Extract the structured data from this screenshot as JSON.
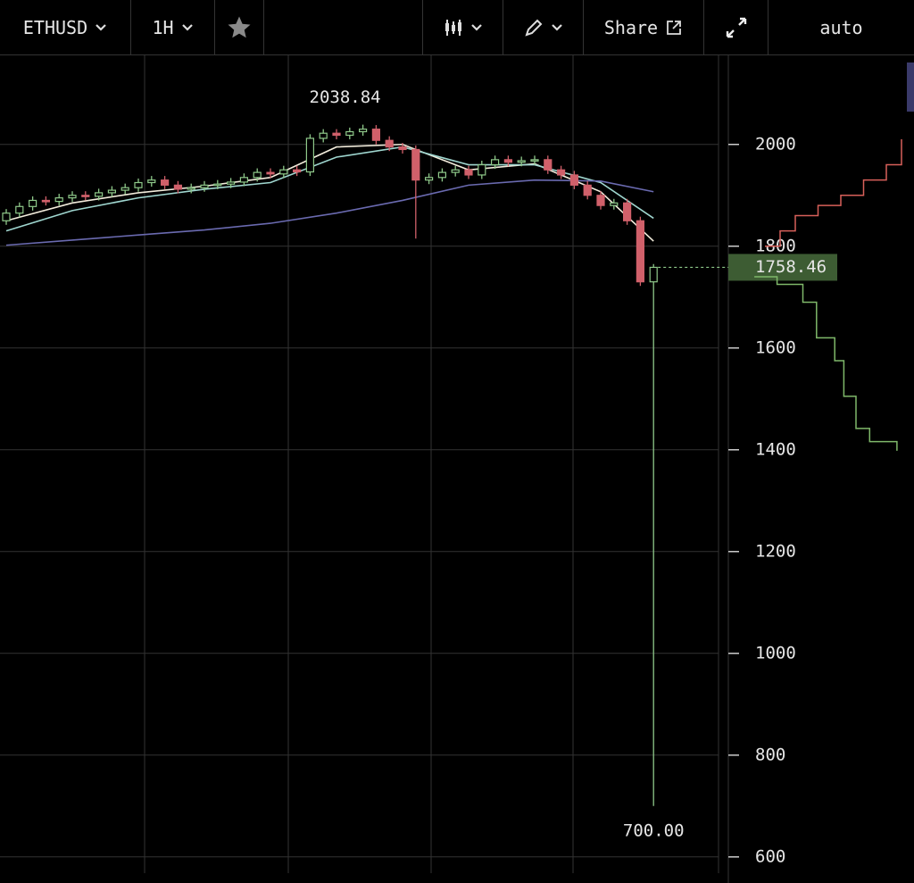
{
  "toolbar": {
    "symbol": "ETHUSD",
    "interval": "1H",
    "share": "Share",
    "scale_mode": "auto"
  },
  "chart_data": {
    "type": "candlestick",
    "open": [
      1850,
      1865,
      1878,
      1890,
      1888,
      1895,
      1900,
      1898,
      1905,
      1910,
      1915,
      1925,
      1930,
      1920,
      1912,
      1915,
      1920,
      1922,
      1926,
      1935,
      1945,
      1942,
      1950,
      1946,
      2012,
      2022,
      2018,
      2025,
      2030,
      2008,
      1995,
      1990,
      1930,
      1935,
      1945,
      1950,
      1940,
      1960,
      1970,
      1965,
      1968,
      1970,
      1950,
      1940,
      1920,
      1900,
      1880,
      1885,
      1850,
      1730
    ],
    "high": [
      1873,
      1886,
      1898,
      1898,
      1903,
      1908,
      1908,
      1913,
      1918,
      1923,
      1933,
      1938,
      1938,
      1928,
      1923,
      1928,
      1930,
      1934,
      1943,
      1953,
      1953,
      1958,
      1958,
      2020,
      2030,
      2030,
      2033,
      2038.84,
      2038,
      2016,
      2003,
      1998,
      1943,
      1953,
      1958,
      1958,
      1968,
      1978,
      1978,
      1976,
      1978,
      1978,
      1958,
      1948,
      1928,
      1908,
      1893,
      1893,
      1858,
      1765
    ],
    "low": [
      1842,
      1857,
      1870,
      1880,
      1880,
      1887,
      1890,
      1890,
      1897,
      1902,
      1907,
      1917,
      1912,
      1904,
      1904,
      1907,
      1912,
      1914,
      1918,
      1927,
      1934,
      1934,
      1938,
      1938,
      2004,
      2010,
      2010,
      2017,
      2000,
      1987,
      1982,
      1815,
      1922,
      1927,
      1937,
      1932,
      1932,
      1952,
      1957,
      1957,
      1960,
      1942,
      1932,
      1912,
      1892,
      1872,
      1872,
      1842,
      1722,
      700
    ],
    "close": [
      1865,
      1878,
      1890,
      1888,
      1895,
      1900,
      1898,
      1905,
      1910,
      1915,
      1925,
      1930,
      1920,
      1912,
      1915,
      1920,
      1922,
      1926,
      1935,
      1945,
      1942,
      1950,
      1946,
      2012,
      2022,
      2018,
      2025,
      2030,
      2008,
      1995,
      1990,
      1930,
      1935,
      1945,
      1950,
      1940,
      1960,
      1970,
      1965,
      1968,
      1970,
      1950,
      1940,
      1920,
      1900,
      1880,
      1885,
      1850,
      1730,
      1758.46
    ],
    "up_color": "#8fc98a",
    "down_color": "#d0606a",
    "moving_averages": [
      {
        "color": "#f2ecdc",
        "x": [
          0,
          5,
          10,
          15,
          20,
          25,
          30,
          35,
          40,
          45,
          49
        ],
        "values": [
          1850,
          1885,
          1905,
          1918,
          1935,
          1995,
          2000,
          1950,
          1962,
          1907,
          1810
        ]
      },
      {
        "color": "#9fd6cf",
        "x": [
          0,
          5,
          10,
          15,
          20,
          25,
          30,
          35,
          40,
          45,
          49
        ],
        "values": [
          1830,
          1870,
          1895,
          1912,
          1925,
          1975,
          1995,
          1960,
          1960,
          1925,
          1855
        ]
      },
      {
        "color": "#6a6ab0",
        "x": [
          0,
          5,
          10,
          15,
          20,
          25,
          30,
          35,
          40,
          45,
          49
        ],
        "values": [
          1802,
          1812,
          1822,
          1832,
          1845,
          1865,
          1890,
          1920,
          1930,
          1928,
          1907
        ]
      }
    ],
    "high_label": "2038.84",
    "low_label": "700.00",
    "last_label": "1758.46",
    "ylim": [
      547,
      2175
    ],
    "yticks": [
      600,
      800,
      1000,
      1200,
      1400,
      1600,
      1800,
      2000
    ],
    "grid": true,
    "depth": [
      {
        "color": "#d8605a",
        "x": [
          10,
          20,
          30,
          45,
          60,
          75,
          90,
          100
        ],
        "values": [
          1800,
          1830,
          1860,
          1880,
          1900,
          1930,
          1960,
          2010
        ]
      },
      {
        "color": "#7fb86a",
        "x": [
          3,
          18,
          35,
          44,
          56,
          62,
          70,
          79,
          97
        ],
        "values": [
          1740,
          1725,
          1690,
          1620,
          1575,
          1505,
          1442,
          1416,
          1398
        ]
      }
    ]
  }
}
